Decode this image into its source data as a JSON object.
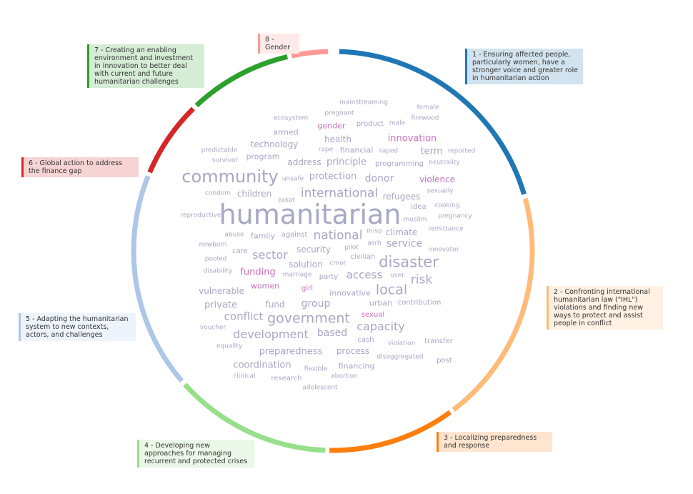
{
  "themes": [
    {
      "id": 1,
      "label": "1 - Ensuring affected people, particularly women, have a stronger voice and greater role in humanitarian action",
      "color": "#1f77b4",
      "bg": "#d2e3ef"
    },
    {
      "id": 2,
      "label": "2 - Confronting international humanitarian law (\"IHL\") violations and finding new ways to protect and assist people in conflict",
      "color": "#ffbb78",
      "bg": "#fff1e3"
    },
    {
      "id": 3,
      "label": "3 - Localizing preparedness and response",
      "color": "#ff7f0e",
      "bg": "#ffe5cf"
    },
    {
      "id": 4,
      "label": "4 - Developing new approaches for managing recurrent and protected crises",
      "color": "#98df8a",
      "bg": "#eaf8e7"
    },
    {
      "id": 5,
      "label": "5 - Adapting the humanitarian system to new contexts, actors, and challenges",
      "color": "#aec7e8",
      "bg": "#eef4fb"
    },
    {
      "id": 6,
      "label": "6 - Global action to address the finance gap",
      "color": "#d62728",
      "bg": "#f7d4d4"
    },
    {
      "id": 7,
      "label": "7 - Creating an enabling environment and investment in innovation to better deal with current and future humanitarian challenges",
      "color": "#2ca02c",
      "bg": "#d5ecd5"
    },
    {
      "id": 8,
      "label": "8 - Gender",
      "color": "#ff9896",
      "bg": "#ffeaea"
    }
  ],
  "words": [
    {
      "text": "mainstreaming",
      "size": 9,
      "color": "#a6a8c4"
    },
    {
      "text": "female",
      "size": 9,
      "color": "#a6a8c4"
    },
    {
      "text": "pregnant",
      "size": 9,
      "color": "#a6a8c4"
    },
    {
      "text": "firewood",
      "size": 9,
      "color": "#a6a8c4"
    },
    {
      "text": "ecosystem",
      "size": 9,
      "color": "#a6a8c4"
    },
    {
      "text": "gender",
      "size": 11,
      "color": "#cc6fbf"
    },
    {
      "text": "product",
      "size": 10,
      "color": "#a6a8c4"
    },
    {
      "text": "male",
      "size": 9,
      "color": "#a6a8c4"
    },
    {
      "text": "armed",
      "size": 11,
      "color": "#a6a8c4"
    },
    {
      "text": "innovation",
      "size": 13,
      "color": "#cc6fbf"
    },
    {
      "text": "health",
      "size": 12,
      "color": "#a6a8c4"
    },
    {
      "text": "technology",
      "size": 12,
      "color": "#a6a8c4"
    },
    {
      "text": "predictable",
      "size": 9,
      "color": "#a6a8c4"
    },
    {
      "text": "rape",
      "size": 9,
      "color": "#a6a8c4"
    },
    {
      "text": "financial",
      "size": 11,
      "color": "#a6a8c4"
    },
    {
      "text": "raped",
      "size": 9,
      "color": "#a6a8c4"
    },
    {
      "text": "term",
      "size": 13,
      "color": "#a6a8c4"
    },
    {
      "text": "reported",
      "size": 9,
      "color": "#a6a8c4"
    },
    {
      "text": "program",
      "size": 11,
      "color": "#a6a8c4"
    },
    {
      "text": "survivor",
      "size": 9,
      "color": "#a6a8c4"
    },
    {
      "text": "address",
      "size": 12,
      "color": "#a6a8c4"
    },
    {
      "text": "principle",
      "size": 13,
      "color": "#a6a8c4"
    },
    {
      "text": "programming",
      "size": 10,
      "color": "#a6a8c4"
    },
    {
      "text": "neutrality",
      "size": 9,
      "color": "#a6a8c4"
    },
    {
      "text": "community",
      "size": 24,
      "color": "#a6a8c4"
    },
    {
      "text": "unsafe",
      "size": 9,
      "color": "#a6a8c4"
    },
    {
      "text": "protection",
      "size": 13,
      "color": "#a6a8c4"
    },
    {
      "text": "donor",
      "size": 14,
      "color": "#a6a8c4"
    },
    {
      "text": "violence",
      "size": 12,
      "color": "#cc6fbf"
    },
    {
      "text": "condom",
      "size": 9,
      "color": "#a6a8c4"
    },
    {
      "text": "children",
      "size": 12,
      "color": "#a6a8c4"
    },
    {
      "text": "international",
      "size": 17,
      "color": "#a6a8c4"
    },
    {
      "text": "refugees",
      "size": 12,
      "color": "#a6a8c4"
    },
    {
      "text": "sexually",
      "size": 9,
      "color": "#a6a8c4"
    },
    {
      "text": "zakat",
      "size": 9,
      "color": "#a6a8c4"
    },
    {
      "text": "idea",
      "size": 10,
      "color": "#a6a8c4"
    },
    {
      "text": "cooking",
      "size": 9,
      "color": "#a6a8c4"
    },
    {
      "text": "reproductive",
      "size": 9,
      "color": "#a6a8c4"
    },
    {
      "text": "humanitarian",
      "size": 38,
      "color": "#a6a8c4"
    },
    {
      "text": "muslim",
      "size": 9,
      "color": "#a6a8c4"
    },
    {
      "text": "pregnancy",
      "size": 9,
      "color": "#a6a8c4"
    },
    {
      "text": "abuse",
      "size": 9,
      "color": "#a6a8c4"
    },
    {
      "text": "family",
      "size": 11,
      "color": "#a6a8c4"
    },
    {
      "text": "against",
      "size": 10,
      "color": "#a6a8c4"
    },
    {
      "text": "national",
      "size": 17,
      "color": "#a6a8c4"
    },
    {
      "text": "misp",
      "size": 9,
      "color": "#a6a8c4"
    },
    {
      "text": "climate",
      "size": 12,
      "color": "#a6a8c4"
    },
    {
      "text": "remittance",
      "size": 9,
      "color": "#a6a8c4"
    },
    {
      "text": "newborn",
      "size": 9,
      "color": "#a6a8c4"
    },
    {
      "text": "asrh",
      "size": 9,
      "color": "#a6a8c4"
    },
    {
      "text": "service",
      "size": 14,
      "color": "#a6a8c4"
    },
    {
      "text": "care",
      "size": 10,
      "color": "#a6a8c4"
    },
    {
      "text": "security",
      "size": 12,
      "color": "#a6a8c4"
    },
    {
      "text": "pilot",
      "size": 9,
      "color": "#a6a8c4"
    },
    {
      "text": "innovator",
      "size": 9,
      "color": "#a6a8c4"
    },
    {
      "text": "sector",
      "size": 16,
      "color": "#a6a8c4"
    },
    {
      "text": "civilian",
      "size": 10,
      "color": "#a6a8c4"
    },
    {
      "text": "disaster",
      "size": 21,
      "color": "#a6a8c4"
    },
    {
      "text": "pooled",
      "size": 9,
      "color": "#a6a8c4"
    },
    {
      "text": "solution",
      "size": 12,
      "color": "#a6a8c4"
    },
    {
      "text": "cmor",
      "size": 9,
      "color": "#a6a8c4"
    },
    {
      "text": "disability",
      "size": 9,
      "color": "#a6a8c4"
    },
    {
      "text": "funding",
      "size": 13,
      "color": "#cc6fbf"
    },
    {
      "text": "marriage",
      "size": 9,
      "color": "#a6a8c4"
    },
    {
      "text": "party",
      "size": 10,
      "color": "#a6a8c4"
    },
    {
      "text": "access",
      "size": 15,
      "color": "#a6a8c4"
    },
    {
      "text": "user",
      "size": 9,
      "color": "#a6a8c4"
    },
    {
      "text": "risk",
      "size": 17,
      "color": "#a6a8c4"
    },
    {
      "text": "women",
      "size": 11,
      "color": "#cc6fbf"
    },
    {
      "text": "girl",
      "size": 10,
      "color": "#cc6fbf"
    },
    {
      "text": "vulnerable",
      "size": 12,
      "color": "#a6a8c4"
    },
    {
      "text": "innovative",
      "size": 11,
      "color": "#a6a8c4"
    },
    {
      "text": "local",
      "size": 19,
      "color": "#a6a8c4"
    },
    {
      "text": "private",
      "size": 13,
      "color": "#a6a8c4"
    },
    {
      "text": "fund",
      "size": 12,
      "color": "#a6a8c4"
    },
    {
      "text": "group",
      "size": 14,
      "color": "#a6a8c4"
    },
    {
      "text": "urban",
      "size": 11,
      "color": "#a6a8c4"
    },
    {
      "text": "contribution",
      "size": 10,
      "color": "#a6a8c4"
    },
    {
      "text": "conflict",
      "size": 15,
      "color": "#a6a8c4"
    },
    {
      "text": "government",
      "size": 19,
      "color": "#a6a8c4"
    },
    {
      "text": "sexual",
      "size": 10,
      "color": "#cc6fbf"
    },
    {
      "text": "capacity",
      "size": 16,
      "color": "#a6a8c4"
    },
    {
      "text": "voucher",
      "size": 9,
      "color": "#a6a8c4"
    },
    {
      "text": "development",
      "size": 16,
      "color": "#a6a8c4"
    },
    {
      "text": "based",
      "size": 14,
      "color": "#a6a8c4"
    },
    {
      "text": "cash",
      "size": 10,
      "color": "#a6a8c4"
    },
    {
      "text": "violation",
      "size": 9,
      "color": "#a6a8c4"
    },
    {
      "text": "transfer",
      "size": 10,
      "color": "#a6a8c4"
    },
    {
      "text": "equality",
      "size": 9,
      "color": "#a6a8c4"
    },
    {
      "text": "preparedness",
      "size": 13,
      "color": "#a6a8c4"
    },
    {
      "text": "process",
      "size": 12,
      "color": "#a6a8c4"
    },
    {
      "text": "disaggregated",
      "size": 9,
      "color": "#a6a8c4"
    },
    {
      "text": "post",
      "size": 10,
      "color": "#a6a8c4"
    },
    {
      "text": "coordination",
      "size": 13,
      "color": "#a6a8c4"
    },
    {
      "text": "flexible",
      "size": 9,
      "color": "#a6a8c4"
    },
    {
      "text": "financing",
      "size": 11,
      "color": "#a6a8c4"
    },
    {
      "text": "clinical",
      "size": 9,
      "color": "#a6a8c4"
    },
    {
      "text": "research",
      "size": 10,
      "color": "#a6a8c4"
    },
    {
      "text": "abortion",
      "size": 9,
      "color": "#a6a8c4"
    },
    {
      "text": "adolescent",
      "size": 9,
      "color": "#a6a8c4"
    }
  ]
}
